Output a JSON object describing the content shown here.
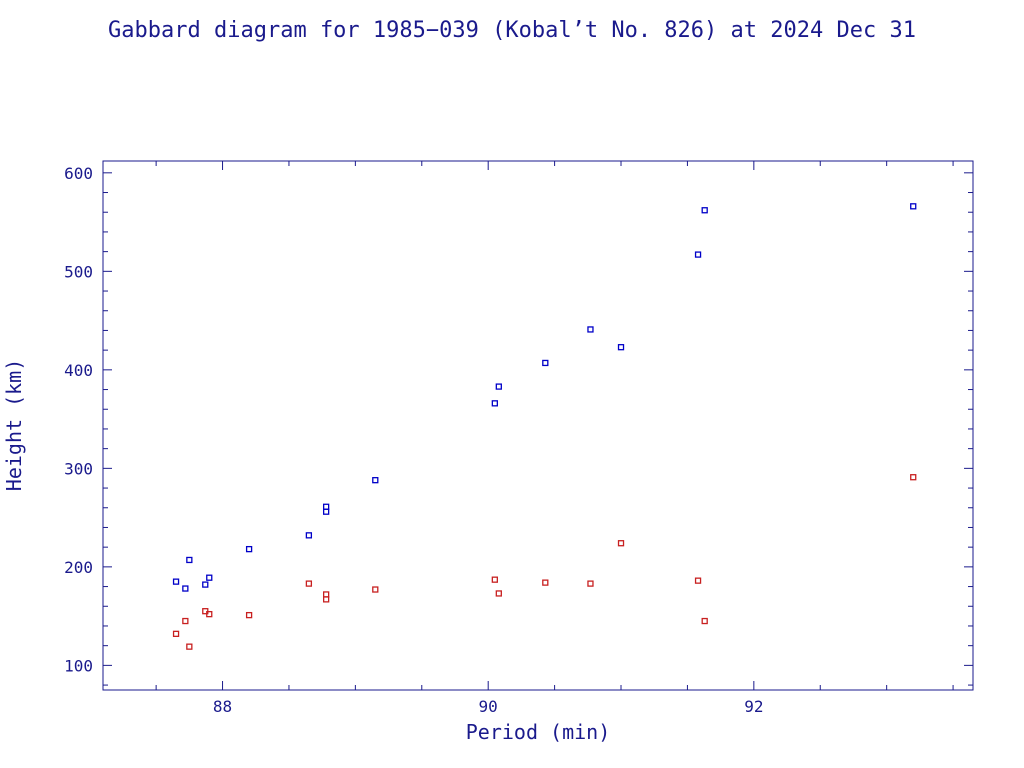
{
  "chart_data": {
    "type": "scatter",
    "title": "Gabbard diagram for 1985−039 (Kobal’t No. 826) at 2024 Dec 31",
    "xlabel": "Period (min)",
    "ylabel": "Height (km)",
    "xlim": [
      87.1,
      93.65
    ],
    "ylim": [
      75,
      612
    ],
    "xticks": [
      88,
      90,
      92
    ],
    "yticks": [
      100,
      200,
      300,
      400,
      500,
      600
    ],
    "x_minor_step": 0.5,
    "y_minor_step": 20,
    "grid": false,
    "legend": "none",
    "series": [
      {
        "color": "#0000c8",
        "points": [
          [
            87.65,
            185
          ],
          [
            87.72,
            178
          ],
          [
            87.75,
            207
          ],
          [
            87.87,
            182
          ],
          [
            87.9,
            189
          ],
          [
            88.2,
            218
          ],
          [
            88.65,
            232
          ],
          [
            88.78,
            256
          ],
          [
            88.78,
            261
          ],
          [
            89.15,
            288
          ],
          [
            90.05,
            366
          ],
          [
            90.08,
            383
          ],
          [
            90.43,
            407
          ],
          [
            90.77,
            441
          ],
          [
            91.0,
            423
          ],
          [
            91.58,
            517
          ],
          [
            91.63,
            562
          ],
          [
            93.2,
            566
          ]
        ]
      },
      {
        "color": "#c82020",
        "points": [
          [
            87.65,
            132
          ],
          [
            87.72,
            145
          ],
          [
            87.75,
            119
          ],
          [
            87.87,
            155
          ],
          [
            87.9,
            152
          ],
          [
            88.2,
            151
          ],
          [
            88.65,
            183
          ],
          [
            88.78,
            167
          ],
          [
            88.78,
            172
          ],
          [
            89.15,
            177
          ],
          [
            90.05,
            187
          ],
          [
            90.08,
            173
          ],
          [
            90.43,
            184
          ],
          [
            90.77,
            183
          ],
          [
            91.0,
            224
          ],
          [
            91.58,
            186
          ],
          [
            91.63,
            145
          ],
          [
            93.2,
            291
          ]
        ]
      }
    ]
  }
}
